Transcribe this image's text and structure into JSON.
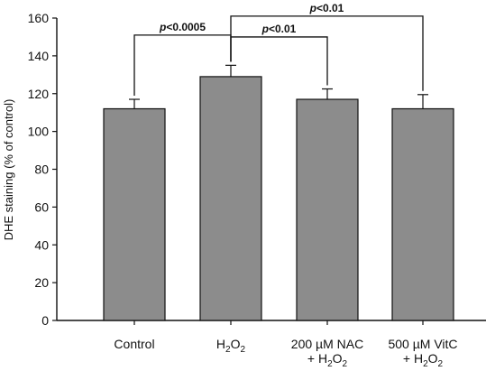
{
  "chart_data": {
    "type": "bar",
    "ylabel": "DHE staining (% of control)",
    "ylim": [
      0,
      160
    ],
    "yticks": [
      0,
      20,
      40,
      60,
      80,
      100,
      120,
      140,
      160
    ],
    "categories": [
      {
        "line1": [
          {
            "t": "Control"
          }
        ],
        "line2": []
      },
      {
        "line1": [
          {
            "t": "H"
          },
          {
            "t": "2",
            "sub": true
          },
          {
            "t": "O"
          },
          {
            "t": "2",
            "sub": true
          }
        ],
        "line2": []
      },
      {
        "line1": [
          {
            "t": "200 µM NAC"
          }
        ],
        "line2": [
          {
            "t": "+ H"
          },
          {
            "t": "2",
            "sub": true
          },
          {
            "t": "O"
          },
          {
            "t": "2",
            "sub": true
          }
        ]
      },
      {
        "line1": [
          {
            "t": "500 µM VitC"
          }
        ],
        "line2": [
          {
            "t": "+ H"
          },
          {
            "t": "2",
            "sub": true
          },
          {
            "t": "O"
          },
          {
            "t": "2",
            "sub": true
          }
        ]
      }
    ],
    "values": [
      112,
      129,
      117,
      112
    ],
    "errors": [
      5,
      6,
      5.5,
      7.5
    ],
    "bar_color": "#8c8c8c",
    "comparisons": [
      {
        "from": 0,
        "to": 1,
        "p_italic": "p",
        "p_text": "<0.0005",
        "y": 151
      },
      {
        "from": 1,
        "to": 2,
        "p_italic": "p",
        "p_text": "<0.01",
        "y": 150
      },
      {
        "from": 1,
        "to": 3,
        "p_italic": "p",
        "p_text": "<0.01",
        "y": 161
      }
    ]
  }
}
